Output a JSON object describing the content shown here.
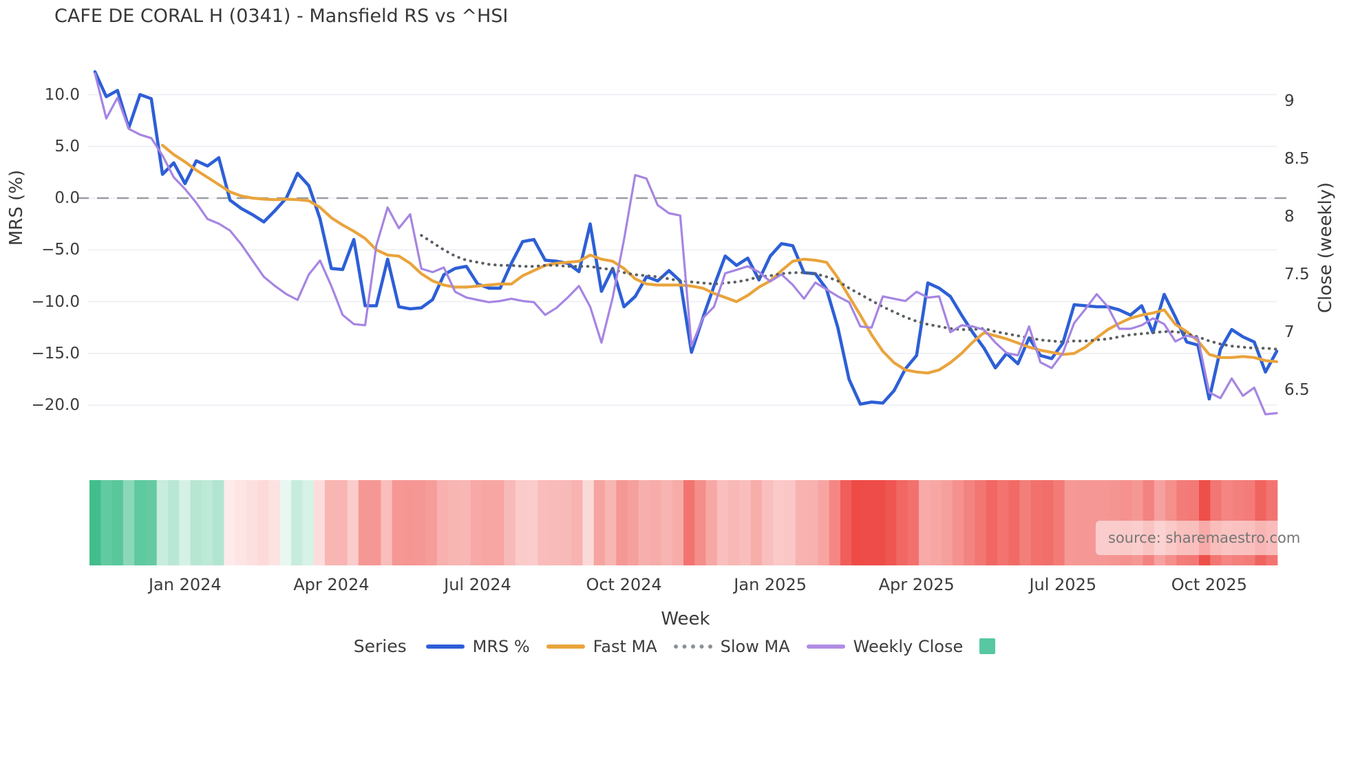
{
  "title": "CAFE DE CORAL H (0341) - Mansfield RS vs ^HSI",
  "source_note": "source: sharemaestro.com",
  "axes": {
    "left_label": "MRS (%)",
    "right_label": "Close (weekly)",
    "x_label": "Week",
    "left_ticks": [
      "10.0",
      "5.0",
      "0.0",
      "−5.0",
      "−10.0",
      "−15.0",
      "−20.0"
    ],
    "left_tick_values": [
      10,
      5,
      0,
      -5,
      -10,
      -15,
      -20
    ],
    "right_ticks": [
      "9",
      "8.5",
      "8",
      "7.5",
      "7",
      "6.5"
    ],
    "right_tick_values": [
      9,
      8.5,
      8,
      7.5,
      7,
      6.5
    ],
    "x_ticks": [
      "Jan 2024",
      "Apr 2024",
      "Jul 2024",
      "Oct 2024",
      "Jan 2025",
      "Apr 2025",
      "Jul 2025",
      "Oct 2025"
    ],
    "x_tick_weeks": [
      8,
      21,
      34,
      47,
      60,
      73,
      86,
      99
    ]
  },
  "legend": {
    "title": "Series",
    "items": [
      {
        "label": "MRS %",
        "color": "#2d5fd6",
        "style": "solid"
      },
      {
        "label": "Fast MA",
        "color": "#e9a43d",
        "style": "solid"
      },
      {
        "label": "Slow MA",
        "color": "#8b9094",
        "style": "dotted"
      },
      {
        "label": "Weekly Close",
        "color": "#b18ce4",
        "style": "solid"
      },
      {
        "label": "",
        "color": "#57c8a2",
        "style": "square"
      }
    ]
  },
  "chart_data": {
    "type": "line",
    "title": "CAFE DE CORAL H (0341) - Mansfield RS vs ^HSI",
    "xlabel": "Week",
    "ylabel_left": "MRS (%)",
    "ylabel_right": "Close (weekly)",
    "x_unit": "week",
    "n_weeks": 106,
    "x_tick_labels": [
      "Jan 2024",
      "Apr 2024",
      "Jul 2024",
      "Oct 2024",
      "Jan 2025",
      "Apr 2025",
      "Jul 2025",
      "Oct 2025"
    ],
    "x_tick_week_index": [
      8,
      21,
      34,
      47,
      60,
      73,
      86,
      99
    ],
    "left_ylim": [
      -22.1,
      13.5
    ],
    "right_ylim": [
      6.18,
      9.37
    ],
    "grid": true,
    "zero_line": {
      "value": 0,
      "axis": "left",
      "style": "dashed",
      "color": "#999ca1"
    },
    "legend_position": "bottom",
    "series": [
      {
        "name": "MRS %",
        "axis": "left",
        "color": "#2d5fd6",
        "style": "solid",
        "width": 4.6,
        "values": [
          12.2,
          9.8,
          10.4,
          6.8,
          10.0,
          9.6,
          2.3,
          3.4,
          1.4,
          3.6,
          3.1,
          3.9,
          -0.2,
          -1.0,
          -1.6,
          -2.3,
          -1.2,
          0.0,
          2.4,
          1.2,
          -2.0,
          -6.8,
          -6.9,
          -4.0,
          -10.4,
          -10.4,
          -5.9,
          -10.5,
          -10.7,
          -10.6,
          -9.8,
          -7.4,
          -6.8,
          -6.6,
          -8.3,
          -8.7,
          -8.7,
          -6.3,
          -4.2,
          -4.0,
          -6.0,
          -6.1,
          -6.3,
          -7.1,
          -2.5,
          -9.0,
          -6.8,
          -10.5,
          -9.5,
          -7.6,
          -8.0,
          -7.0,
          -8.0,
          -14.9,
          -11.6,
          -8.5,
          -5.6,
          -6.5,
          -5.8,
          -7.9,
          -5.6,
          -4.4,
          -4.6,
          -7.2,
          -7.3,
          -8.8,
          -12.5,
          -17.5,
          -19.9,
          -19.7,
          -19.8,
          -18.6,
          -16.5,
          -15.2,
          -8.2,
          -8.7,
          -9.5,
          -11.3,
          -13.0,
          -14.5,
          -16.4,
          -15.0,
          -16.0,
          -13.5,
          -15.2,
          -15.5,
          -14.0,
          -10.3,
          -10.4,
          -10.5,
          -10.5,
          -10.8,
          -11.3,
          -10.4,
          -13.0,
          -9.3,
          -11.5,
          -13.9,
          -14.2,
          -19.4,
          -14.6,
          -12.7,
          -13.4,
          -13.9,
          -16.8,
          -14.8
        ]
      },
      {
        "name": "Fast MA",
        "axis": "left",
        "color": "#e9a43d",
        "style": "solid",
        "width": 4.2,
        "values": [
          null,
          null,
          null,
          null,
          null,
          null,
          5.1,
          4.2,
          3.5,
          2.7,
          2.0,
          1.3,
          0.6,
          0.2,
          0.0,
          -0.1,
          -0.15,
          -0.1,
          -0.15,
          -0.25,
          -0.9,
          -1.9,
          -2.6,
          -3.2,
          -3.9,
          -5.0,
          -5.5,
          -5.6,
          -6.3,
          -7.3,
          -8.0,
          -8.4,
          -8.6,
          -8.6,
          -8.5,
          -8.4,
          -8.3,
          -8.3,
          -7.5,
          -7.0,
          -6.5,
          -6.3,
          -6.2,
          -6.1,
          -5.5,
          -5.9,
          -6.1,
          -6.8,
          -7.8,
          -8.3,
          -8.4,
          -8.4,
          -8.4,
          -8.5,
          -8.7,
          -9.2,
          -9.6,
          -10.0,
          -9.4,
          -8.6,
          -8.0,
          -7.0,
          -6.1,
          -5.9,
          -6.0,
          -6.2,
          -7.7,
          -9.5,
          -11.3,
          -13.2,
          -14.8,
          -15.9,
          -16.6,
          -16.8,
          -16.9,
          -16.6,
          -15.9,
          -15.0,
          -13.9,
          -13.0,
          -13.3,
          -13.6,
          -14.0,
          -14.4,
          -14.7,
          -14.9,
          -15.1,
          -15.0,
          -14.4,
          -13.5,
          -12.7,
          -12.1,
          -11.6,
          -11.3,
          -11.1,
          -10.8,
          -12.2,
          -12.9,
          -13.8,
          -15.1,
          -15.4,
          -15.4,
          -15.3,
          -15.4,
          -15.7,
          -15.8
        ]
      },
      {
        "name": "Slow MA",
        "axis": "left",
        "color": "#5b6063",
        "style": "dotted",
        "width": 4,
        "values": [
          null,
          null,
          null,
          null,
          null,
          null,
          null,
          null,
          null,
          null,
          null,
          null,
          null,
          null,
          null,
          null,
          null,
          null,
          null,
          null,
          null,
          null,
          null,
          null,
          null,
          null,
          null,
          null,
          null,
          -3.6,
          -4.3,
          -5.0,
          -5.6,
          -6.0,
          -6.2,
          -6.4,
          -6.5,
          -6.5,
          -6.6,
          -6.6,
          -6.5,
          -6.5,
          -6.6,
          -6.6,
          -6.6,
          -6.8,
          -6.9,
          -7.2,
          -7.4,
          -7.5,
          -7.6,
          -7.8,
          -8.0,
          -8.1,
          -8.2,
          -8.3,
          -8.2,
          -8.1,
          -7.9,
          -7.6,
          -7.5,
          -7.3,
          -7.2,
          -7.2,
          -7.3,
          -7.6,
          -8.0,
          -8.7,
          -9.3,
          -9.9,
          -10.5,
          -11.0,
          -11.5,
          -11.9,
          -12.2,
          -12.4,
          -12.6,
          -12.7,
          -12.7,
          -12.6,
          -12.9,
          -13.1,
          -13.3,
          -13.5,
          -13.7,
          -13.8,
          -13.9,
          -13.8,
          -13.8,
          -13.7,
          -13.6,
          -13.4,
          -13.2,
          -13.1,
          -13.0,
          -12.9,
          -12.9,
          -13.1,
          -13.4,
          -13.8,
          -14.1,
          -14.3,
          -14.4,
          -14.5,
          -14.5,
          -14.6
        ]
      },
      {
        "name": "Weekly Close",
        "axis": "right",
        "color": "#a685e2",
        "style": "solid",
        "width": 3.2,
        "values": [
          9.24,
          8.85,
          9.03,
          8.76,
          8.71,
          8.68,
          8.53,
          8.34,
          8.24,
          8.12,
          7.98,
          7.94,
          7.88,
          7.76,
          7.62,
          7.48,
          7.4,
          7.33,
          7.28,
          7.5,
          7.62,
          7.4,
          7.15,
          7.07,
          7.06,
          7.75,
          8.08,
          7.9,
          8.02,
          7.55,
          7.52,
          7.56,
          7.35,
          7.3,
          7.28,
          7.26,
          7.27,
          7.29,
          7.27,
          7.26,
          7.15,
          7.21,
          7.3,
          7.4,
          7.22,
          6.91,
          7.3,
          7.8,
          8.36,
          8.33,
          8.1,
          8.03,
          8.01,
          6.88,
          7.12,
          7.22,
          7.51,
          7.54,
          7.57,
          7.52,
          7.44,
          7.5,
          7.41,
          7.29,
          7.43,
          7.37,
          7.31,
          7.26,
          7.05,
          7.04,
          7.31,
          7.29,
          7.27,
          7.35,
          7.3,
          7.31,
          7.0,
          7.06,
          7.05,
          7.02,
          6.91,
          6.82,
          6.8,
          7.05,
          6.74,
          6.69,
          6.82,
          7.08,
          7.2,
          7.33,
          7.22,
          7.03,
          7.03,
          7.06,
          7.12,
          7.07,
          6.92,
          6.97,
          6.95,
          6.48,
          6.43,
          6.6,
          6.45,
          6.52,
          6.29,
          6.3
        ]
      }
    ],
    "heatmap_strip": {
      "derived_from": "MRS %",
      "positive_color": "#3dbd8a",
      "negative_color": "#ee4a45",
      "positive_scale_max": 12.5,
      "negative_scale_max": 20
    }
  }
}
